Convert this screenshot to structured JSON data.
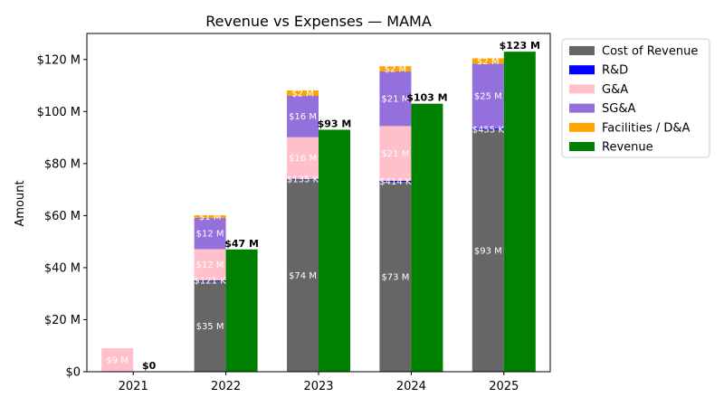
{
  "chart_data": {
    "type": "bar",
    "title": "Revenue vs Expenses — MAMA",
    "xlabel": "",
    "ylabel": "Amount",
    "ylim": [
      0,
      130
    ],
    "yticks": [
      0,
      20,
      40,
      60,
      80,
      100,
      120
    ],
    "ytick_labels": [
      "$0",
      "$20 M",
      "$40 M",
      "$60 M",
      "$80 M",
      "$100 M",
      "$120 M"
    ],
    "categories": [
      "2021",
      "2022",
      "2023",
      "2024",
      "2025"
    ],
    "legend_position": "outside-top-right",
    "expense_series": [
      {
        "name": "Cost of Revenue",
        "color": "#666666",
        "values": [
          0,
          35,
          74,
          73,
          93
        ],
        "labels": [
          "",
          "$35 M",
          "$74 M",
          "$73 M",
          "$93 M"
        ]
      },
      {
        "name": "R&D",
        "color": "#0000ff",
        "values": [
          0,
          0.121,
          0.135,
          0.414,
          0.455
        ],
        "labels": [
          "",
          "$121 K",
          "$135 K",
          "$414 K",
          "$455 K"
        ]
      },
      {
        "name": "G&A",
        "color": "#ffc0cb",
        "values": [
          9,
          12,
          16,
          21,
          0
        ],
        "labels": [
          "$9 M",
          "$12 M",
          "$16 M",
          "$21 M",
          ""
        ]
      },
      {
        "name": "SG&A",
        "color": "#9370db",
        "values": [
          0,
          12,
          16,
          21,
          25
        ],
        "labels": [
          "",
          "$12 M",
          "$16 M",
          "$21 M",
          "$25 M"
        ]
      },
      {
        "name": "Facilities / D&A",
        "color": "#ffa500",
        "values": [
          0,
          1,
          2,
          2,
          2
        ],
        "labels": [
          "",
          "$1 M",
          "$2 M",
          "$2 M",
          "$2 M"
        ]
      }
    ],
    "revenue_series": {
      "name": "Revenue",
      "color": "#008000",
      "values": [
        0,
        47,
        93,
        103,
        123
      ],
      "labels": [
        "$0",
        "$47 M",
        "$93 M",
        "$103 M",
        "$123 M"
      ]
    }
  }
}
